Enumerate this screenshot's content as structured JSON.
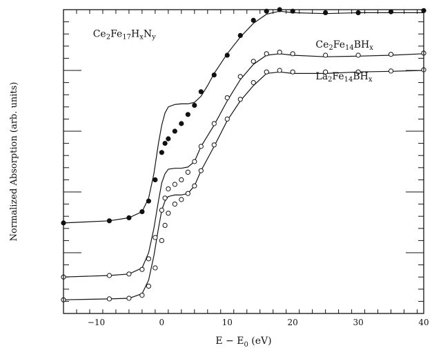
{
  "chart_data": {
    "type": "scatter",
    "xlabel_main": "E − E",
    "xlabel_sub": "0",
    "xlabel_unit": " (eV)",
    "ylabel": "Normalized Absorption (arb. units)",
    "xlim": [
      -15,
      40
    ],
    "ylim": [
      0,
      1
    ],
    "xticks": [
      -10,
      0,
      10,
      20,
      30,
      40
    ],
    "grid": false,
    "series": [
      {
        "name": "Ce2Fe17HxNy",
        "label_parts": [
          [
            "Ce",
            ""
          ],
          [
            "2",
            "sub"
          ],
          [
            "Fe",
            ""
          ],
          [
            "17",
            "sub"
          ],
          [
            "H",
            ""
          ],
          [
            "x",
            "sub"
          ],
          [
            "N",
            ""
          ],
          [
            "y",
            "sub"
          ]
        ],
        "label_at": [
          -10.5,
          0.91
        ],
        "marker": "filled",
        "fit": [
          [
            -15,
            0.298
          ],
          [
            -8,
            0.305
          ],
          [
            -5,
            0.315
          ],
          [
            -3,
            0.335
          ],
          [
            -2,
            0.38
          ],
          [
            -1.2,
            0.46
          ],
          [
            -0.5,
            0.56
          ],
          [
            0,
            0.62
          ],
          [
            0.5,
            0.66
          ],
          [
            1,
            0.68
          ],
          [
            2,
            0.688
          ],
          [
            3,
            0.69
          ],
          [
            4,
            0.69
          ],
          [
            5,
            0.695
          ],
          [
            6,
            0.715
          ],
          [
            7,
            0.75
          ],
          [
            8,
            0.79
          ],
          [
            10,
            0.855
          ],
          [
            12,
            0.91
          ],
          [
            14,
            0.955
          ],
          [
            16,
            0.985
          ],
          [
            18,
            0.995
          ],
          [
            20,
            0.99
          ],
          [
            25,
            0.987
          ],
          [
            30,
            0.99
          ],
          [
            35,
            0.99
          ],
          [
            40,
            0.99
          ]
        ],
        "points": [
          [
            -15,
            0.298
          ],
          [
            -8,
            0.305
          ],
          [
            -5,
            0.315
          ],
          [
            -3,
            0.335
          ],
          [
            -2,
            0.37
          ],
          [
            -1,
            0.44
          ],
          [
            0,
            0.53
          ],
          [
            0.5,
            0.56
          ],
          [
            1,
            0.575
          ],
          [
            2,
            0.6
          ],
          [
            3,
            0.625
          ],
          [
            4,
            0.655
          ],
          [
            5,
            0.685
          ],
          [
            6,
            0.73
          ],
          [
            8,
            0.785
          ],
          [
            10,
            0.85
          ],
          [
            12,
            0.915
          ],
          [
            14,
            0.965
          ],
          [
            16,
            0.995
          ],
          [
            18,
            1.0
          ],
          [
            20,
            0.995
          ],
          [
            25,
            0.99
          ],
          [
            30,
            0.99
          ],
          [
            35,
            0.993
          ],
          [
            40,
            0.997
          ]
        ]
      },
      {
        "name": "Ce2Fe14BHx",
        "label_parts": [
          [
            "Ce",
            ""
          ],
          [
            "2",
            "sub"
          ],
          [
            "Fe",
            ""
          ],
          [
            "14",
            "sub"
          ],
          [
            "BH",
            ""
          ],
          [
            "x",
            "sub"
          ]
        ],
        "label_at": [
          23.5,
          0.875
        ],
        "marker": "open",
        "fit": [
          [
            -15,
            0.12
          ],
          [
            -8,
            0.125
          ],
          [
            -5,
            0.13
          ],
          [
            -3,
            0.15
          ],
          [
            -2,
            0.2
          ],
          [
            -1.2,
            0.28
          ],
          [
            -0.5,
            0.37
          ],
          [
            0,
            0.43
          ],
          [
            0.5,
            0.46
          ],
          [
            1,
            0.475
          ],
          [
            2,
            0.478
          ],
          [
            3,
            0.478
          ],
          [
            4,
            0.482
          ],
          [
            5,
            0.5
          ],
          [
            6,
            0.55
          ],
          [
            8,
            0.62
          ],
          [
            10,
            0.7
          ],
          [
            12,
            0.77
          ],
          [
            14,
            0.82
          ],
          [
            16,
            0.85
          ],
          [
            18,
            0.855
          ],
          [
            20,
            0.85
          ],
          [
            25,
            0.845
          ],
          [
            30,
            0.847
          ],
          [
            35,
            0.85
          ],
          [
            40,
            0.855
          ]
        ],
        "points": [
          [
            -15,
            0.12
          ],
          [
            -8,
            0.125
          ],
          [
            -5,
            0.13
          ],
          [
            -3,
            0.145
          ],
          [
            -2,
            0.18
          ],
          [
            -1,
            0.25
          ],
          [
            0,
            0.34
          ],
          [
            0.5,
            0.38
          ],
          [
            1,
            0.41
          ],
          [
            2,
            0.425
          ],
          [
            3,
            0.44
          ],
          [
            4,
            0.465
          ],
          [
            5,
            0.5
          ],
          [
            6,
            0.55
          ],
          [
            8,
            0.625
          ],
          [
            10,
            0.71
          ],
          [
            12,
            0.78
          ],
          [
            14,
            0.83
          ],
          [
            16,
            0.855
          ],
          [
            18,
            0.86
          ],
          [
            20,
            0.855
          ],
          [
            25,
            0.85
          ],
          [
            30,
            0.85
          ],
          [
            35,
            0.853
          ],
          [
            40,
            0.857
          ]
        ]
      },
      {
        "name": "La2Fe14BHx",
        "label_parts": [
          [
            "La",
            ""
          ],
          [
            "2",
            "sub"
          ],
          [
            "Fe",
            ""
          ],
          [
            "14",
            "sub"
          ],
          [
            "BH",
            ""
          ],
          [
            "x",
            "sub"
          ]
        ],
        "label_at": [
          23.5,
          0.77
        ],
        "marker": "open",
        "fit": [
          [
            -15,
            0.045
          ],
          [
            -8,
            0.048
          ],
          [
            -5,
            0.05
          ],
          [
            -3,
            0.065
          ],
          [
            -2,
            0.11
          ],
          [
            -1.2,
            0.19
          ],
          [
            -0.5,
            0.28
          ],
          [
            0,
            0.34
          ],
          [
            0.5,
            0.37
          ],
          [
            1,
            0.385
          ],
          [
            2,
            0.39
          ],
          [
            3,
            0.39
          ],
          [
            4,
            0.395
          ],
          [
            5,
            0.42
          ],
          [
            6,
            0.47
          ],
          [
            8,
            0.55
          ],
          [
            10,
            0.635
          ],
          [
            12,
            0.7
          ],
          [
            14,
            0.75
          ],
          [
            16,
            0.79
          ],
          [
            18,
            0.795
          ],
          [
            20,
            0.79
          ],
          [
            25,
            0.79
          ],
          [
            30,
            0.795
          ],
          [
            35,
            0.797
          ],
          [
            40,
            0.8
          ]
        ],
        "points": [
          [
            -15,
            0.045
          ],
          [
            -8,
            0.048
          ],
          [
            -5,
            0.05
          ],
          [
            -3,
            0.06
          ],
          [
            -2,
            0.09
          ],
          [
            -1,
            0.15
          ],
          [
            0,
            0.24
          ],
          [
            0.5,
            0.29
          ],
          [
            1,
            0.33
          ],
          [
            2,
            0.36
          ],
          [
            3,
            0.375
          ],
          [
            4,
            0.395
          ],
          [
            5,
            0.42
          ],
          [
            6,
            0.47
          ],
          [
            8,
            0.555
          ],
          [
            10,
            0.64
          ],
          [
            12,
            0.705
          ],
          [
            14,
            0.76
          ],
          [
            16,
            0.795
          ],
          [
            18,
            0.8
          ],
          [
            20,
            0.795
          ],
          [
            25,
            0.795
          ],
          [
            30,
            0.795
          ],
          [
            35,
            0.798
          ],
          [
            40,
            0.802
          ]
        ]
      }
    ]
  }
}
